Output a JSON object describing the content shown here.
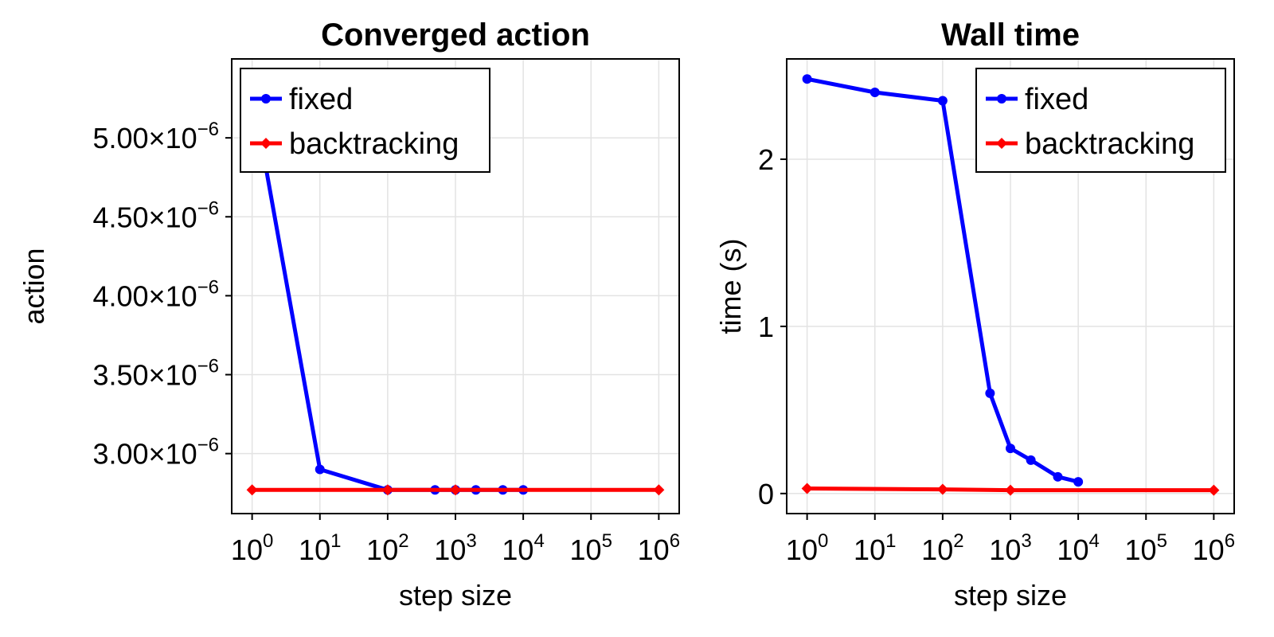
{
  "chart_data": [
    {
      "type": "line",
      "title": "Converged action",
      "xlabel": "step size",
      "ylabel": "action",
      "xscale": "log",
      "xlim": [
        0.5,
        2000000
      ],
      "ylim": [
        2.62e-06,
        5.5e-06
      ],
      "xticks": [
        1,
        10,
        100,
        1000,
        10000,
        100000,
        1000000
      ],
      "xtick_labels": [
        "10^0",
        "10^1",
        "10^2",
        "10^3",
        "10^4",
        "10^5",
        "10^6"
      ],
      "yticks": [
        3e-06,
        3.5e-06,
        4e-06,
        4.5e-06,
        5e-06
      ],
      "ytick_labels": [
        "3.00×10^−6",
        "3.50×10^−6",
        "4.00×10^−6",
        "4.50×10^−6",
        "5.00×10^−6"
      ],
      "grid": true,
      "legend_position": "top-left",
      "series": [
        {
          "name": "fixed",
          "color": "#0000ff",
          "marker": "circle",
          "x": [
            1,
            10,
            100,
            500,
            1000,
            2000,
            5000,
            10000
          ],
          "y": [
            5.3e-06,
            2.9e-06,
            2.77e-06,
            2.77e-06,
            2.77e-06,
            2.77e-06,
            2.77e-06,
            2.77e-06
          ]
        },
        {
          "name": "backtracking",
          "color": "#ff0000",
          "marker": "diamond",
          "x": [
            1,
            100,
            1000,
            1000000
          ],
          "y": [
            2.77e-06,
            2.77e-06,
            2.77e-06,
            2.77e-06
          ]
        }
      ]
    },
    {
      "type": "line",
      "title": "Wall time",
      "xlabel": "step size",
      "ylabel": "time (s)",
      "xscale": "log",
      "xlim": [
        0.5,
        2000000
      ],
      "ylim": [
        -0.12,
        2.6
      ],
      "xticks": [
        1,
        10,
        100,
        1000,
        10000,
        100000,
        1000000
      ],
      "xtick_labels": [
        "10^0",
        "10^1",
        "10^2",
        "10^3",
        "10^4",
        "10^5",
        "10^6"
      ],
      "yticks": [
        0,
        1,
        2
      ],
      "ytick_labels": [
        "0",
        "1",
        "2"
      ],
      "grid": true,
      "legend_position": "top-right",
      "series": [
        {
          "name": "fixed",
          "color": "#0000ff",
          "marker": "circle",
          "x": [
            1,
            10,
            100,
            500,
            1000,
            2000,
            5000,
            10000
          ],
          "y": [
            2.48,
            2.4,
            2.35,
            0.6,
            0.27,
            0.2,
            0.1,
            0.07
          ]
        },
        {
          "name": "backtracking",
          "color": "#ff0000",
          "marker": "diamond",
          "x": [
            1,
            100,
            1000,
            1000000
          ],
          "y": [
            0.03,
            0.025,
            0.02,
            0.02
          ]
        }
      ]
    }
  ]
}
